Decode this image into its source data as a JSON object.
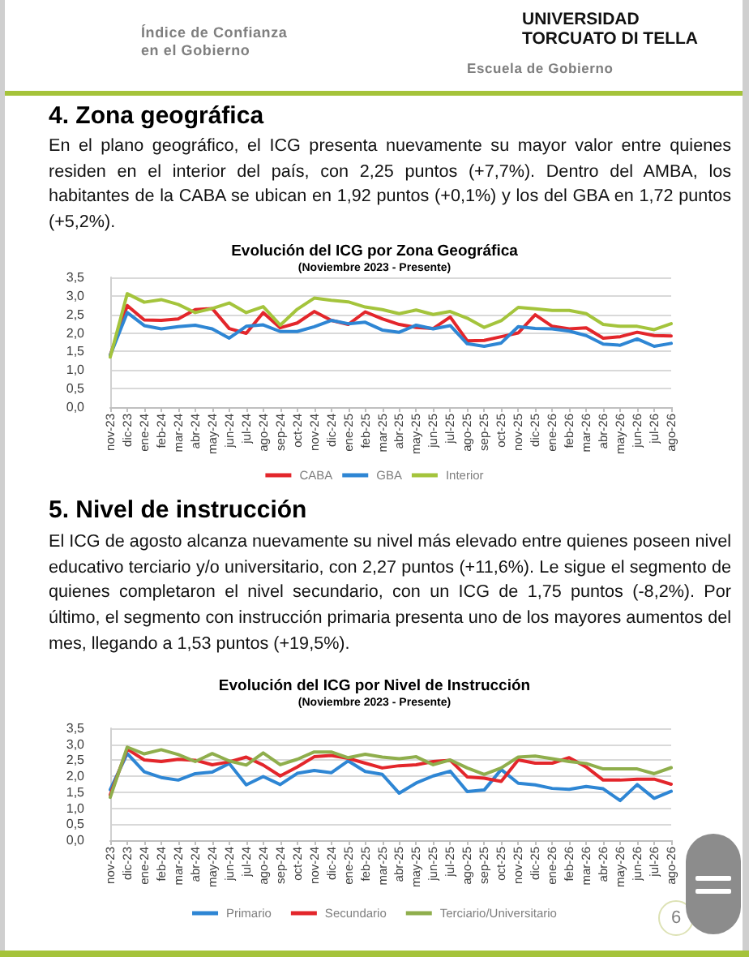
{
  "chart_data": [
    {
      "type": "line",
      "title": "Evolución del ICG por Zona Geográfica",
      "subtitle": "(Noviembre 2023 - Presente)",
      "categories": [
        "nov-23",
        "dic-23",
        "ene-24",
        "feb-24",
        "mar-24",
        "abr-24",
        "may-24",
        "jun-24",
        "jul-24",
        "ago-24",
        "sep-24",
        "oct-24",
        "nov-24",
        "dic-24",
        "ene-25",
        "feb-25",
        "mar-25",
        "abr-25",
        "may-25",
        "jun-25",
        "jul-25",
        "ago-25",
        "sep-25",
        "oct-25",
        "nov-25",
        "dic-25",
        "ene-26",
        "feb-26",
        "mar-26",
        "abr-26",
        "may-26",
        "jun-26",
        "jul-26",
        "ago-26"
      ],
      "series": [
        {
          "name": "CABA",
          "color": "#e3262b",
          "values": [
            1.4,
            2.74,
            2.35,
            2.34,
            2.38,
            2.63,
            2.66,
            2.12,
            1.99,
            2.55,
            2.14,
            2.27,
            2.58,
            2.34,
            2.23,
            2.57,
            2.38,
            2.23,
            2.15,
            2.12,
            2.43,
            1.79,
            1.8,
            1.9,
            2.0,
            2.49,
            2.18,
            2.11,
            2.14,
            1.86,
            1.9,
            2.02,
            1.93,
            1.92
          ]
        },
        {
          "name": "GBA",
          "color": "#2e86d4",
          "values": [
            1.4,
            2.55,
            2.2,
            2.11,
            2.17,
            2.21,
            2.11,
            1.86,
            2.18,
            2.22,
            2.04,
            2.04,
            2.17,
            2.34,
            2.25,
            2.29,
            2.08,
            2.02,
            2.21,
            2.11,
            2.2,
            1.71,
            1.64,
            1.73,
            2.17,
            2.12,
            2.11,
            2.05,
            1.93,
            1.7,
            1.67,
            1.84,
            1.64,
            1.72
          ]
        },
        {
          "name": "Interior",
          "color": "#a4c43c",
          "values": [
            1.35,
            3.06,
            2.83,
            2.9,
            2.77,
            2.55,
            2.66,
            2.81,
            2.55,
            2.71,
            2.21,
            2.64,
            2.94,
            2.88,
            2.84,
            2.7,
            2.63,
            2.52,
            2.62,
            2.5,
            2.58,
            2.4,
            2.15,
            2.33,
            2.69,
            2.65,
            2.61,
            2.61,
            2.52,
            2.23,
            2.18,
            2.18,
            2.09,
            2.25
          ]
        }
      ],
      "ylim": [
        0,
        3.5
      ],
      "yticks": [
        {
          "value": 0,
          "label": "0,0"
        },
        {
          "value": 0.5,
          "label": "0,5"
        },
        {
          "value": 1,
          "label": "1,0"
        },
        {
          "value": 1.5,
          "label": "1,5"
        },
        {
          "value": 2,
          "label": "2,0"
        },
        {
          "value": 2.5,
          "label": "2,5"
        },
        {
          "value": 3,
          "label": "3,0"
        },
        {
          "value": 3.5,
          "label": "3,5"
        }
      ],
      "grid": "y",
      "legend": "bottom",
      "marker": "none",
      "line_style": "solid",
      "annotations": [
        "Índice de Confianza en el Gobierno",
        "UNIVERSIDAD TORCUATO DI TELLA",
        "Escuela de Gobierno",
        "4. Zona geográfica",
        "En el plano geográfico, el ICG presenta nuevamente su mayor valor entre quienes residen en el interior del país, con 2,25 puntos (+7,7%). Dentro del AMBA, los habitantes de la CABA se ubican en 1,92 puntos (+0,1%) y los del GBA en 1,72 puntos (+5,2%)."
      ]
    },
    {
      "type": "line",
      "title": "Evolución del ICG por Nivel de Instrucción",
      "subtitle": "(Noviembre 2023 - Presente)",
      "categories": [
        "nov-23",
        "dic-23",
        "ene-24",
        "feb-24",
        "mar-24",
        "abr-24",
        "may-24",
        "jun-24",
        "jul-24",
        "ago-24",
        "sep-24",
        "oct-24",
        "nov-24",
        "dic-24",
        "ene-25",
        "feb-25",
        "mar-25",
        "abr-25",
        "may-25",
        "jun-25",
        "jul-25",
        "ago-25",
        "sep-25",
        "oct-25",
        "nov-25",
        "dic-25",
        "ene-26",
        "feb-26",
        "mar-26",
        "abr-26",
        "may-26",
        "jun-26",
        "jul-26",
        "ago-26"
      ],
      "series": [
        {
          "name": "Primario",
          "color": "#2e86d4",
          "values": [
            1.58,
            2.71,
            2.14,
            1.96,
            1.88,
            2.08,
            2.13,
            2.4,
            1.73,
            1.99,
            1.74,
            2.09,
            2.18,
            2.11,
            2.48,
            2.15,
            2.06,
            1.47,
            1.79,
            2.01,
            2.16,
            1.52,
            1.57,
            2.21,
            1.78,
            1.73,
            1.62,
            1.59,
            1.68,
            1.61,
            1.24,
            1.74,
            1.31,
            1.53
          ]
        },
        {
          "name": "Secundario",
          "color": "#e3262b",
          "values": [
            1.42,
            2.85,
            2.51,
            2.46,
            2.53,
            2.5,
            2.36,
            2.45,
            2.6,
            2.35,
            2.01,
            2.29,
            2.61,
            2.65,
            2.56,
            2.41,
            2.26,
            2.33,
            2.36,
            2.46,
            2.5,
            1.98,
            1.94,
            1.84,
            2.51,
            2.41,
            2.41,
            2.58,
            2.29,
            1.88,
            1.88,
            1.91,
            1.91,
            1.75
          ]
        },
        {
          "name": "Terciario/Universitario",
          "color": "#8fae4c",
          "values": [
            1.34,
            2.91,
            2.7,
            2.83,
            2.68,
            2.46,
            2.71,
            2.48,
            2.35,
            2.73,
            2.36,
            2.53,
            2.76,
            2.76,
            2.58,
            2.69,
            2.6,
            2.55,
            2.61,
            2.36,
            2.51,
            2.26,
            2.06,
            2.26,
            2.6,
            2.63,
            2.55,
            2.46,
            2.4,
            2.23,
            2.23,
            2.23,
            2.08,
            2.27
          ]
        }
      ],
      "ylim": [
        0,
        3.5
      ],
      "yticks": [
        {
          "value": 0,
          "label": "0,0"
        },
        {
          "value": 0.5,
          "label": "0,5"
        },
        {
          "value": 1,
          "label": "1,0"
        },
        {
          "value": 1.5,
          "label": "1,5"
        },
        {
          "value": 2,
          "label": "2,0"
        },
        {
          "value": 2.5,
          "label": "2,5"
        },
        {
          "value": 3,
          "label": "3,0"
        },
        {
          "value": 3.5,
          "label": "3,5"
        }
      ],
      "grid": "y",
      "legend": "bottom",
      "marker": "none",
      "line_style": "solid",
      "annotations": [
        "5. Nivel de instrucción",
        "El ICG de agosto alcanza nuevamente su nivel más elevado entre quienes poseen nivel educativo terciario y/o universitario, con 2,27 puntos (+11,6%). Le sigue el segmento de quienes completaron el nivel secundario, con un ICG de 1,75 puntos (-8,2%). Por último, el segmento con instrucción primaria presenta uno de los mayores aumentos del mes, llegando a 1,53 puntos (+19,5%).",
        "6"
      ]
    }
  ]
}
